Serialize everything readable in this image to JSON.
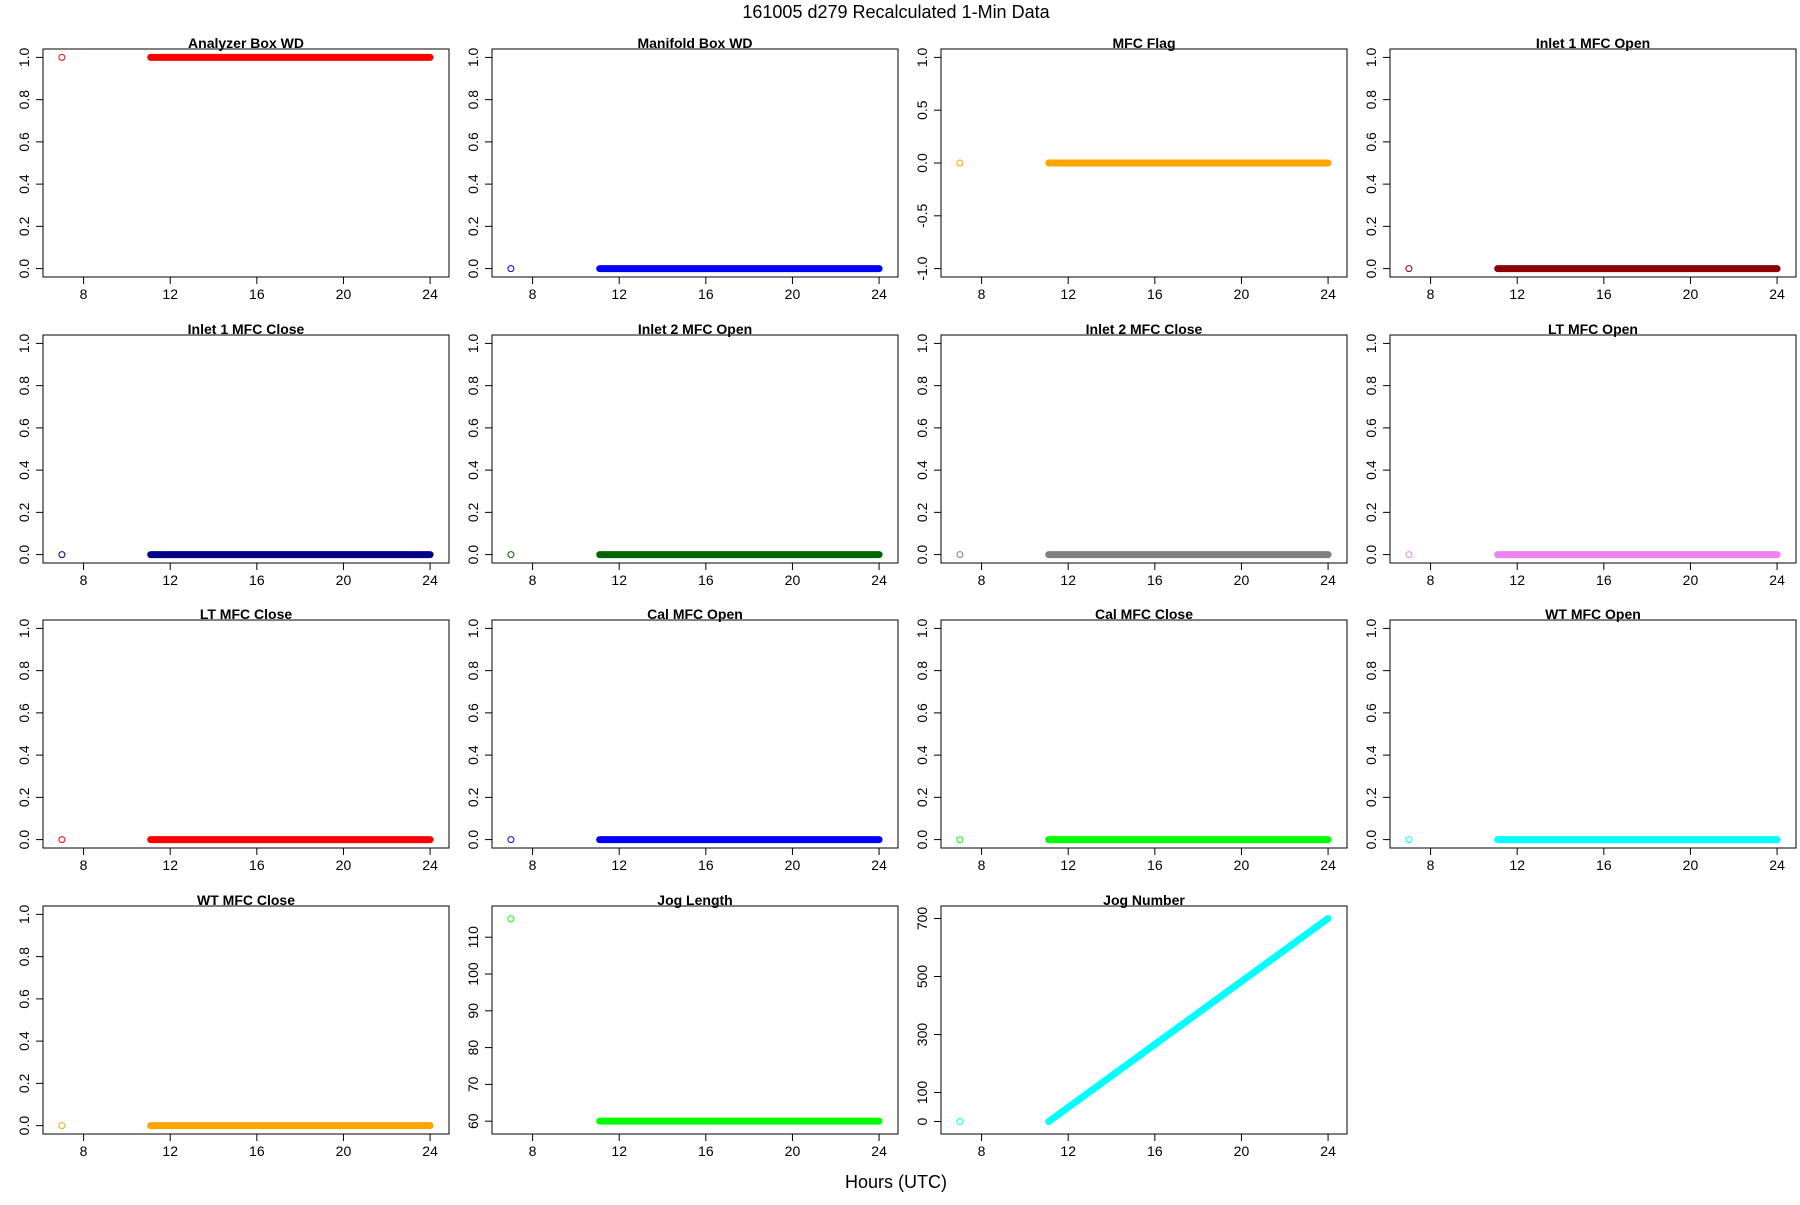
{
  "title": "161005   d279   Recalculated 1-Min Data",
  "xlabel": "Hours (UTC)",
  "chart_data": [
    {
      "type": "scatter",
      "title": "Analyzer Box WD",
      "color": "#ff0000",
      "ylim": [
        0,
        1
      ],
      "yticks": [
        "0.0",
        "0.2",
        "0.4",
        "0.6",
        "0.8",
        "1.0"
      ],
      "ytick_values": [
        0,
        0.2,
        0.4,
        0.6,
        0.8,
        1.0
      ],
      "xlim": [
        6.5,
        24.5
      ],
      "xticks": [
        "8",
        "12",
        "16",
        "20",
        "24"
      ],
      "xtick_values": [
        8,
        12,
        16,
        20,
        24
      ],
      "legend_point": [
        7,
        1
      ],
      "x": [
        11.1,
        24.0
      ],
      "y": [
        1,
        1
      ]
    },
    {
      "type": "scatter",
      "title": "Manifold Box WD",
      "color": "#0000ff",
      "ylim": [
        0,
        1
      ],
      "yticks": [
        "0.0",
        "0.2",
        "0.4",
        "0.6",
        "0.8",
        "1.0"
      ],
      "ytick_values": [
        0,
        0.2,
        0.4,
        0.6,
        0.8,
        1.0
      ],
      "xlim": [
        6.5,
        24.5
      ],
      "xticks": [
        "8",
        "12",
        "16",
        "20",
        "24"
      ],
      "xtick_values": [
        8,
        12,
        16,
        20,
        24
      ],
      "legend_point": [
        7,
        0
      ],
      "x": [
        11.1,
        24.0
      ],
      "y": [
        0,
        0
      ]
    },
    {
      "type": "scatter",
      "title": "MFC Flag",
      "color": "#ffa500",
      "ylim": [
        -1,
        1
      ],
      "yticks": [
        "-1.0",
        "-0.5",
        "0.0",
        "0.5",
        "1.0"
      ],
      "ytick_values": [
        -1,
        -0.5,
        0,
        0.5,
        1
      ],
      "xlim": [
        6.5,
        24.5
      ],
      "xticks": [
        "8",
        "12",
        "16",
        "20",
        "24"
      ],
      "xtick_values": [
        8,
        12,
        16,
        20,
        24
      ],
      "legend_point": [
        7,
        0
      ],
      "x": [
        11.1,
        24.0
      ],
      "y": [
        0,
        0
      ]
    },
    {
      "type": "scatter",
      "title": "Inlet 1 MFC Open",
      "color": "#8b0000",
      "ylim": [
        0,
        1
      ],
      "yticks": [
        "0.0",
        "0.2",
        "0.4",
        "0.6",
        "0.8",
        "1.0"
      ],
      "ytick_values": [
        0,
        0.2,
        0.4,
        0.6,
        0.8,
        1.0
      ],
      "xlim": [
        6.5,
        24.5
      ],
      "xticks": [
        "8",
        "12",
        "16",
        "20",
        "24"
      ],
      "xtick_values": [
        8,
        12,
        16,
        20,
        24
      ],
      "legend_point": [
        7,
        0
      ],
      "x": [
        11.1,
        24.0
      ],
      "y": [
        0,
        0
      ]
    },
    {
      "type": "scatter",
      "title": "Inlet 1 MFC Close",
      "color": "#00008b",
      "ylim": [
        0,
        1
      ],
      "yticks": [
        "0.0",
        "0.2",
        "0.4",
        "0.6",
        "0.8",
        "1.0"
      ],
      "ytick_values": [
        0,
        0.2,
        0.4,
        0.6,
        0.8,
        1.0
      ],
      "xlim": [
        6.5,
        24.5
      ],
      "xticks": [
        "8",
        "12",
        "16",
        "20",
        "24"
      ],
      "xtick_values": [
        8,
        12,
        16,
        20,
        24
      ],
      "legend_point": [
        7,
        0
      ],
      "x": [
        11.1,
        24.0
      ],
      "y": [
        0,
        0
      ]
    },
    {
      "type": "scatter",
      "title": "Inlet 2 MFC Open",
      "color": "#006400",
      "ylim": [
        0,
        1
      ],
      "yticks": [
        "0.0",
        "0.2",
        "0.4",
        "0.6",
        "0.8",
        "1.0"
      ],
      "ytick_values": [
        0,
        0.2,
        0.4,
        0.6,
        0.8,
        1.0
      ],
      "xlim": [
        6.5,
        24.5
      ],
      "xticks": [
        "8",
        "12",
        "16",
        "20",
        "24"
      ],
      "xtick_values": [
        8,
        12,
        16,
        20,
        24
      ],
      "legend_point": [
        7,
        0
      ],
      "x": [
        11.1,
        24.0
      ],
      "y": [
        0,
        0
      ]
    },
    {
      "type": "scatter",
      "title": "Inlet 2 MFC Close",
      "color": "#808080",
      "ylim": [
        0,
        1
      ],
      "yticks": [
        "0.0",
        "0.2",
        "0.4",
        "0.6",
        "0.8",
        "1.0"
      ],
      "ytick_values": [
        0,
        0.2,
        0.4,
        0.6,
        0.8,
        1.0
      ],
      "xlim": [
        6.5,
        24.5
      ],
      "xticks": [
        "8",
        "12",
        "16",
        "20",
        "24"
      ],
      "xtick_values": [
        8,
        12,
        16,
        20,
        24
      ],
      "legend_point": [
        7,
        0
      ],
      "x": [
        11.1,
        24.0
      ],
      "y": [
        0,
        0
      ]
    },
    {
      "type": "scatter",
      "title": "LT MFC Open",
      "color": "#ee82ee",
      "ylim": [
        0,
        1
      ],
      "yticks": [
        "0.0",
        "0.2",
        "0.4",
        "0.6",
        "0.8",
        "1.0"
      ],
      "ytick_values": [
        0,
        0.2,
        0.4,
        0.6,
        0.8,
        1.0
      ],
      "xlim": [
        6.5,
        24.5
      ],
      "xticks": [
        "8",
        "12",
        "16",
        "20",
        "24"
      ],
      "xtick_values": [
        8,
        12,
        16,
        20,
        24
      ],
      "legend_point": [
        7,
        0
      ],
      "x": [
        11.1,
        24.0
      ],
      "y": [
        0,
        0
      ]
    },
    {
      "type": "scatter",
      "title": "LT MFC Close",
      "color": "#ff0000",
      "ylim": [
        0,
        1
      ],
      "yticks": [
        "0.0",
        "0.2",
        "0.4",
        "0.6",
        "0.8",
        "1.0"
      ],
      "ytick_values": [
        0,
        0.2,
        0.4,
        0.6,
        0.8,
        1.0
      ],
      "xlim": [
        6.5,
        24.5
      ],
      "xticks": [
        "8",
        "12",
        "16",
        "20",
        "24"
      ],
      "xtick_values": [
        8,
        12,
        16,
        20,
        24
      ],
      "legend_point": [
        7,
        0
      ],
      "x": [
        11.1,
        24.0
      ],
      "y": [
        0,
        0
      ]
    },
    {
      "type": "scatter",
      "title": "Cal MFC Open",
      "color": "#0000ff",
      "ylim": [
        0,
        1
      ],
      "yticks": [
        "0.0",
        "0.2",
        "0.4",
        "0.6",
        "0.8",
        "1.0"
      ],
      "ytick_values": [
        0,
        0.2,
        0.4,
        0.6,
        0.8,
        1.0
      ],
      "xlim": [
        6.5,
        24.5
      ],
      "xticks": [
        "8",
        "12",
        "16",
        "20",
        "24"
      ],
      "xtick_values": [
        8,
        12,
        16,
        20,
        24
      ],
      "legend_point": [
        7,
        0
      ],
      "x": [
        11.1,
        24.0
      ],
      "y": [
        0,
        0
      ]
    },
    {
      "type": "scatter",
      "title": "Cal MFC Close",
      "color": "#00ff00",
      "ylim": [
        0,
        1
      ],
      "yticks": [
        "0.0",
        "0.2",
        "0.4",
        "0.6",
        "0.8",
        "1.0"
      ],
      "ytick_values": [
        0,
        0.2,
        0.4,
        0.6,
        0.8,
        1.0
      ],
      "xlim": [
        6.5,
        24.5
      ],
      "xticks": [
        "8",
        "12",
        "16",
        "20",
        "24"
      ],
      "xtick_values": [
        8,
        12,
        16,
        20,
        24
      ],
      "legend_point": [
        7,
        0
      ],
      "x": [
        11.1,
        24.0
      ],
      "y": [
        0,
        0
      ]
    },
    {
      "type": "scatter",
      "title": "WT MFC Open",
      "color": "#00ffff",
      "ylim": [
        0,
        1
      ],
      "yticks": [
        "0.0",
        "0.2",
        "0.4",
        "0.6",
        "0.8",
        "1.0"
      ],
      "ytick_values": [
        0,
        0.2,
        0.4,
        0.6,
        0.8,
        1.0
      ],
      "xlim": [
        6.5,
        24.5
      ],
      "xticks": [
        "8",
        "12",
        "16",
        "20",
        "24"
      ],
      "xtick_values": [
        8,
        12,
        16,
        20,
        24
      ],
      "legend_point": [
        7,
        0
      ],
      "x": [
        11.1,
        24.0
      ],
      "y": [
        0,
        0
      ]
    },
    {
      "type": "scatter",
      "title": "WT MFC Close",
      "color": "#ffa500",
      "ylim": [
        0,
        1
      ],
      "yticks": [
        "0.0",
        "0.2",
        "0.4",
        "0.6",
        "0.8",
        "1.0"
      ],
      "ytick_values": [
        0,
        0.2,
        0.4,
        0.6,
        0.8,
        1.0
      ],
      "xlim": [
        6.5,
        24.5
      ],
      "xticks": [
        "8",
        "12",
        "16",
        "20",
        "24"
      ],
      "xtick_values": [
        8,
        12,
        16,
        20,
        24
      ],
      "legend_point": [
        7,
        0
      ],
      "x": [
        11.1,
        24.0
      ],
      "y": [
        0,
        0
      ]
    },
    {
      "type": "scatter",
      "title": "Jog Length",
      "color": "#00ff00",
      "ylim": [
        58.8,
        116.2
      ],
      "yticks": [
        "60",
        "70",
        "80",
        "90",
        "100",
        "110"
      ],
      "ytick_values": [
        60,
        70,
        80,
        90,
        100,
        110
      ],
      "xlim": [
        6.5,
        24.5
      ],
      "xticks": [
        "8",
        "12",
        "16",
        "20",
        "24"
      ],
      "xtick_values": [
        8,
        12,
        16,
        20,
        24
      ],
      "legend_point": [
        7,
        115
      ],
      "x": [
        11.1,
        24.0
      ],
      "y": [
        60,
        60
      ]
    },
    {
      "type": "scatter",
      "title": "Jog Number",
      "color": "#00ffff",
      "ylim": [
        -14,
        714
      ],
      "yticks": [
        "0",
        "100",
        "300",
        "500",
        "700"
      ],
      "ytick_values": [
        0,
        100,
        300,
        500,
        700
      ],
      "xlim": [
        6.5,
        24.5
      ],
      "xticks": [
        "8",
        "12",
        "16",
        "20",
        "24"
      ],
      "xtick_values": [
        8,
        12,
        16,
        20,
        24
      ],
      "legend_point": [
        7,
        0
      ],
      "x": [
        11.1,
        24.0
      ],
      "y": [
        0,
        700
      ]
    }
  ]
}
